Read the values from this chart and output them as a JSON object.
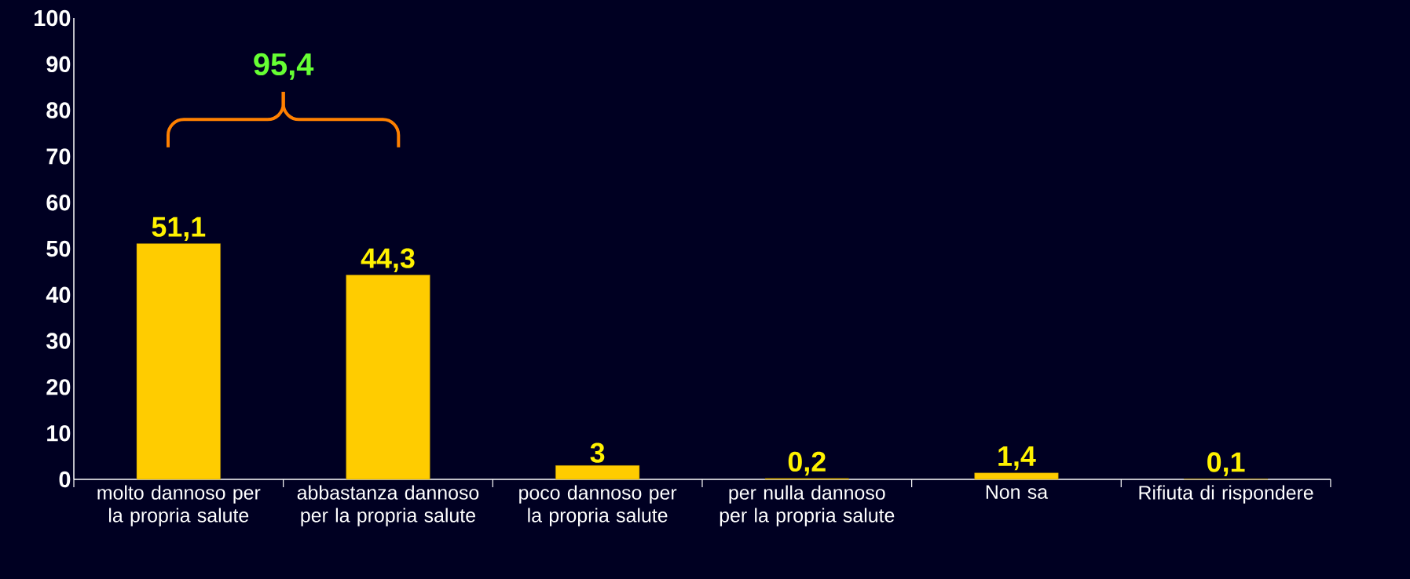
{
  "chart_data": {
    "type": "bar",
    "categories": [
      "molto dannoso per la propria salute",
      "abbastanza dannoso per la propria salute",
      "poco dannoso per la propria salute",
      "per nulla dannoso per la propria salute",
      "Non sa",
      "Rifiuta di rispondere"
    ],
    "values": [
      51.1,
      44.3,
      3,
      0.2,
      1.4,
      0.1
    ],
    "color": "#ffcc00",
    "value_labels": [
      "51,1",
      "44,3",
      "3",
      "0,2",
      "1,4",
      "0,1"
    ],
    "ylim": [
      0,
      100
    ],
    "yticks": [
      0,
      10,
      20,
      30,
      40,
      50,
      60,
      70,
      80,
      90,
      100
    ],
    "annotations": [
      "95,4"
    ]
  }
}
